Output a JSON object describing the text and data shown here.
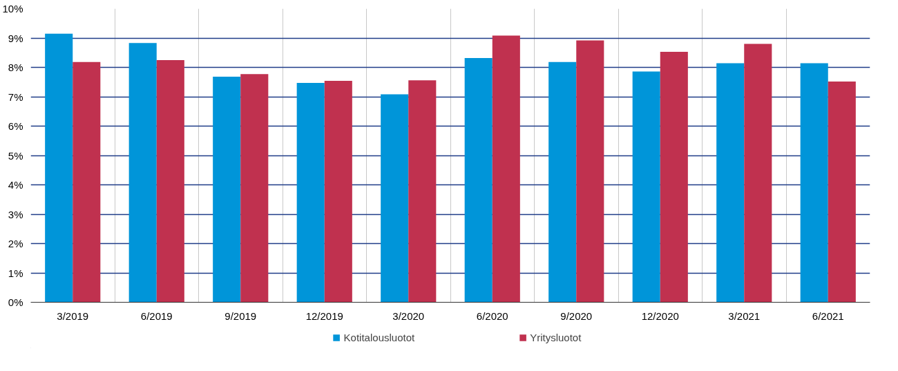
{
  "chart_data": {
    "type": "bar",
    "categories": [
      "3/2019",
      "6/2019",
      "9/2019",
      "12/2019",
      "3/2020",
      "6/2020",
      "9/2020",
      "12/2020",
      "3/2021",
      "6/2021"
    ],
    "series": [
      {
        "name": "Kotitalousluotot",
        "color": "#0095d9",
        "values": [
          9.15,
          8.83,
          7.68,
          7.47,
          7.08,
          8.32,
          8.18,
          7.86,
          8.14,
          8.14
        ]
      },
      {
        "name": "Yritysluotot",
        "color": "#c0314f",
        "values": [
          8.18,
          8.25,
          7.77,
          7.54,
          7.56,
          9.08,
          8.92,
          8.53,
          8.8,
          7.52
        ]
      }
    ],
    "ylim": [
      0,
      10
    ],
    "yticks": [
      {
        "value": 0,
        "label": "0%"
      },
      {
        "value": 1,
        "label": "1%"
      },
      {
        "value": 2,
        "label": "2%"
      },
      {
        "value": 3,
        "label": "3%"
      },
      {
        "value": 4,
        "label": "4%"
      },
      {
        "value": 5,
        "label": "5%"
      },
      {
        "value": 6,
        "label": "6%"
      },
      {
        "value": 7,
        "label": "7%"
      },
      {
        "value": 8,
        "label": "8%"
      },
      {
        "value": 9,
        "label": "9%"
      },
      {
        "value": 10,
        "label": "10%"
      }
    ],
    "grid": true,
    "legend": "bottom"
  }
}
